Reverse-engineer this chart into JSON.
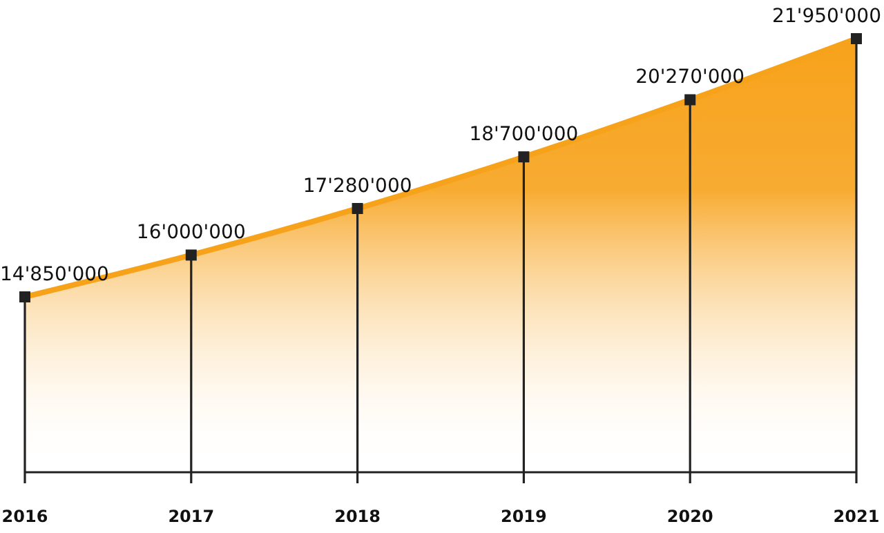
{
  "chart_data": {
    "type": "area",
    "categories": [
      "2016",
      "2017",
      "2018",
      "2019",
      "2020",
      "2021"
    ],
    "values": [
      14850000,
      16000000,
      17280000,
      18700000,
      20270000,
      21950000
    ],
    "value_labels": [
      "14'850'000",
      "16'000'000",
      "17'280'000",
      "18'700'000",
      "20'270'000",
      "21'950'000"
    ],
    "color": "#f7a21b",
    "marker": "square"
  }
}
